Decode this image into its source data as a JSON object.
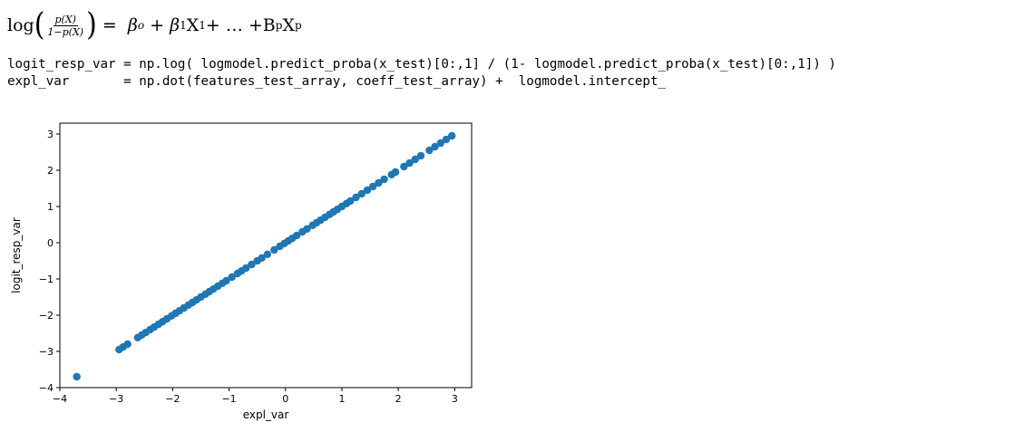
{
  "formula": {
    "log": "log",
    "frac_num": "p(X)",
    "frac_den": "1−p(X)",
    "rhs_beta0": "β",
    "rhs_beta0_sub": "o",
    "rhs_plus1": "+",
    "rhs_beta1": "β",
    "rhs_beta1_sub": "1",
    "rhs_x1": "X",
    "rhs_x1_sub": "1",
    "rhs_plus2": "+ … + ",
    "rhs_bp": "B",
    "rhs_bp_sub": "p",
    "rhs_xp": "X",
    "rhs_xp_sub": "p"
  },
  "code": {
    "line1": "logit_resp_var = np.log( logmodel.predict_proba(x_test)[0:,1] / (1- logmodel.predict_proba(x_test)[0:,1]) )",
    "line2": "expl_var       = np.dot(features_test_array, coeff_test_array) +  logmodel.intercept_"
  },
  "chart_data": {
    "type": "scatter",
    "title": "",
    "xlabel": "expl_var",
    "ylabel": "logit_resp_var",
    "xlim": [
      -4,
      3.3
    ],
    "ylim": [
      -4,
      3.3
    ],
    "xticks": [
      "−4",
      "−3",
      "−2",
      "−1",
      "0",
      "1",
      "2",
      "3"
    ],
    "yticks": [
      "−4",
      "−3",
      "−2",
      "−1",
      "0",
      "1",
      "2",
      "3"
    ],
    "grid": false,
    "marker_color": "#1f77b4",
    "x": [
      -3.7,
      -2.95,
      -2.88,
      -2.8,
      -2.62,
      -2.55,
      -2.48,
      -2.4,
      -2.33,
      -2.25,
      -2.18,
      -2.1,
      -2.02,
      -1.95,
      -1.88,
      -1.8,
      -1.72,
      -1.65,
      -1.58,
      -1.5,
      -1.42,
      -1.35,
      -1.28,
      -1.2,
      -1.12,
      -1.05,
      -0.95,
      -0.85,
      -0.78,
      -0.7,
      -0.6,
      -0.5,
      -0.42,
      -0.32,
      -0.2,
      -0.1,
      -0.02,
      0.05,
      0.12,
      0.2,
      0.3,
      0.38,
      0.48,
      0.55,
      0.62,
      0.7,
      0.78,
      0.85,
      0.92,
      1.0,
      1.08,
      1.15,
      1.25,
      1.35,
      1.45,
      1.55,
      1.65,
      1.75,
      1.88,
      1.95,
      2.1,
      2.2,
      2.3,
      2.4,
      2.55,
      2.65,
      2.75,
      2.85,
      2.95
    ],
    "y": [
      -3.7,
      -2.95,
      -2.88,
      -2.8,
      -2.62,
      -2.55,
      -2.48,
      -2.4,
      -2.33,
      -2.25,
      -2.18,
      -2.1,
      -2.02,
      -1.95,
      -1.88,
      -1.8,
      -1.72,
      -1.65,
      -1.58,
      -1.5,
      -1.42,
      -1.35,
      -1.28,
      -1.2,
      -1.12,
      -1.05,
      -0.95,
      -0.85,
      -0.78,
      -0.7,
      -0.6,
      -0.5,
      -0.42,
      -0.32,
      -0.2,
      -0.1,
      -0.02,
      0.05,
      0.12,
      0.2,
      0.3,
      0.38,
      0.48,
      0.55,
      0.62,
      0.7,
      0.78,
      0.85,
      0.92,
      1.0,
      1.08,
      1.15,
      1.25,
      1.35,
      1.45,
      1.55,
      1.65,
      1.75,
      1.88,
      1.95,
      2.1,
      2.2,
      2.3,
      2.4,
      2.55,
      2.65,
      2.75,
      2.85,
      2.95
    ]
  }
}
